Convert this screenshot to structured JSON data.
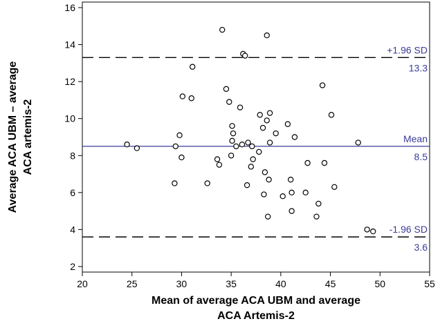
{
  "chart_data": {
    "type": "scatter",
    "xlabel_lines": [
      "Mean of average ACA UBM and average",
      "ACA Artemis-2"
    ],
    "ylabel_lines": [
      "Average ACA UBM – average",
      "ACA artemis-2"
    ],
    "xlim": [
      20,
      55
    ],
    "ylim": [
      1.7,
      16.3
    ],
    "xticks": [
      20,
      25,
      30,
      35,
      40,
      45,
      50,
      55
    ],
    "yticks": [
      2,
      4,
      6,
      8,
      10,
      12,
      14,
      16
    ],
    "grid": false,
    "accent_color": "#3b3b98",
    "reference_lines": [
      {
        "label": "+1.96 SD",
        "value": 13.3,
        "value_label": "13.3",
        "style": "dashed"
      },
      {
        "label": "Mean",
        "value": 8.5,
        "value_label": "8.5",
        "style": "solid"
      },
      {
        "label": "-1.96 SD",
        "value": 3.6,
        "value_label": "3.6",
        "style": "dashed"
      }
    ],
    "points": [
      [
        24.5,
        8.6
      ],
      [
        25.5,
        8.4
      ],
      [
        29.3,
        6.5
      ],
      [
        29.4,
        8.5
      ],
      [
        29.8,
        9.1
      ],
      [
        30.0,
        7.9
      ],
      [
        30.1,
        11.2
      ],
      [
        31.0,
        11.1
      ],
      [
        31.1,
        12.8
      ],
      [
        32.6,
        6.5
      ],
      [
        33.6,
        7.8
      ],
      [
        33.8,
        7.5
      ],
      [
        34.1,
        14.8
      ],
      [
        34.5,
        11.6
      ],
      [
        34.8,
        10.9
      ],
      [
        35.0,
        8.0
      ],
      [
        35.1,
        8.8
      ],
      [
        35.1,
        9.6
      ],
      [
        35.2,
        9.2
      ],
      [
        35.5,
        8.5
      ],
      [
        35.9,
        10.6
      ],
      [
        36.1,
        8.6
      ],
      [
        36.2,
        13.5
      ],
      [
        36.4,
        13.4
      ],
      [
        36.6,
        6.4
      ],
      [
        36.7,
        8.7
      ],
      [
        37.0,
        7.4
      ],
      [
        37.1,
        8.5
      ],
      [
        37.2,
        7.8
      ],
      [
        37.8,
        8.2
      ],
      [
        37.9,
        10.2
      ],
      [
        38.2,
        9.5
      ],
      [
        38.3,
        5.9
      ],
      [
        38.4,
        7.1
      ],
      [
        38.6,
        9.9
      ],
      [
        38.6,
        14.5
      ],
      [
        38.7,
        4.7
      ],
      [
        38.8,
        6.7
      ],
      [
        38.9,
        10.3
      ],
      [
        38.9,
        8.7
      ],
      [
        39.5,
        9.2
      ],
      [
        40.2,
        5.8
      ],
      [
        40.7,
        9.7
      ],
      [
        41.0,
        6.7
      ],
      [
        41.1,
        6.0
      ],
      [
        41.1,
        5.0
      ],
      [
        41.4,
        9.0
      ],
      [
        42.5,
        6.0
      ],
      [
        42.7,
        7.6
      ],
      [
        43.6,
        4.7
      ],
      [
        43.8,
        5.4
      ],
      [
        44.2,
        11.8
      ],
      [
        44.4,
        7.6
      ],
      [
        45.1,
        10.2
      ],
      [
        45.4,
        6.3
      ],
      [
        47.8,
        8.7
      ],
      [
        48.7,
        4.0
      ],
      [
        49.3,
        3.9
      ]
    ]
  }
}
